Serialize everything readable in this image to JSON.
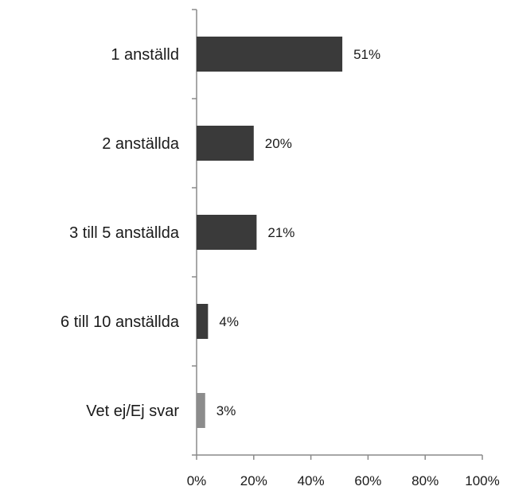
{
  "chart_data": {
    "type": "bar",
    "orientation": "horizontal",
    "title": "",
    "xlabel": "",
    "ylabel": "",
    "categories": [
      "1 anställd",
      "2 anställda",
      "3 till 5 anställda",
      "6 till 10 anställda",
      "Vet ej/Ej svar"
    ],
    "values": [
      51,
      20,
      21,
      4,
      3
    ],
    "value_labels": [
      "51%",
      "20%",
      "21%",
      "4%",
      "3%"
    ],
    "bar_colors": [
      "#3a3a3a",
      "#3a3a3a",
      "#3a3a3a",
      "#3a3a3a",
      "#8c8c8c"
    ],
    "xlim": [
      0,
      100
    ],
    "x_ticks": [
      0,
      20,
      40,
      60,
      80,
      100
    ],
    "x_tick_labels": [
      "0%",
      "20%",
      "40%",
      "60%",
      "80%",
      "100%"
    ],
    "grid": false,
    "legend": "none"
  }
}
